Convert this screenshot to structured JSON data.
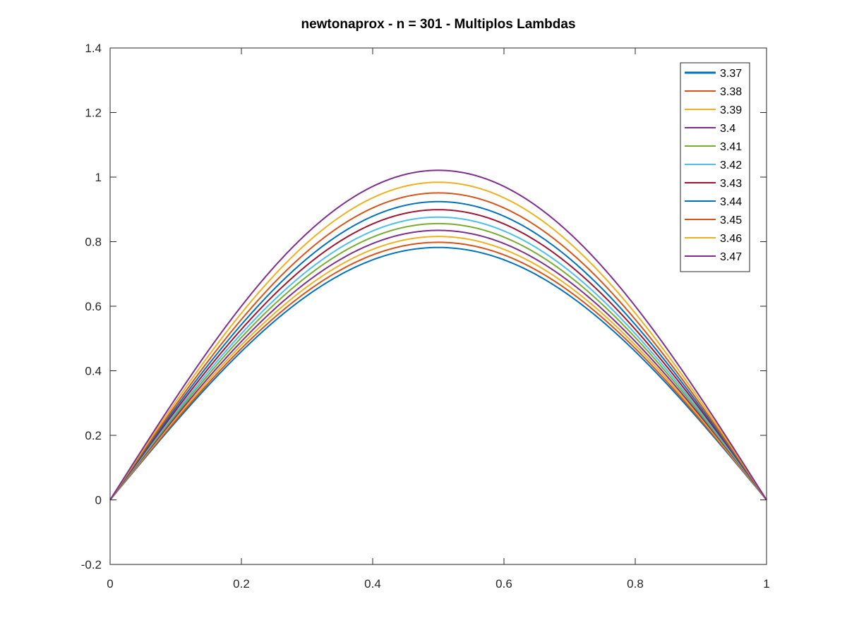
{
  "chart_data": {
    "type": "line",
    "title": "newtonaprox - n = 301 - Multiplos Lambdas",
    "xlabel": "",
    "ylabel": "",
    "xlim": [
      0,
      1
    ],
    "ylim": [
      -0.2,
      1.4
    ],
    "xticks": [
      0,
      0.2,
      0.4,
      0.6,
      0.8,
      1
    ],
    "xtick_labels": [
      "0",
      "0.2",
      "0.4",
      "0.6",
      "0.8",
      "1"
    ],
    "yticks": [
      -0.2,
      0,
      0.2,
      0.4,
      0.6,
      0.8,
      1,
      1.2,
      1.4
    ],
    "ytick_labels": [
      "-0.2",
      "0",
      "0.2",
      "0.4",
      "0.6",
      "0.8",
      "1",
      "1.2",
      "1.4"
    ],
    "grid": false,
    "legend_position": "top-right",
    "curve_shape": "sine-arch, zero at x=0 and x=1, maximum at x=0.5",
    "x_at_peak": 0.5,
    "series": [
      {
        "name": "3.37",
        "color": "#0072BD",
        "peak": 0.782
      },
      {
        "name": "3.38",
        "color": "#D95319",
        "peak": 0.798
      },
      {
        "name": "3.39",
        "color": "#EDB120",
        "peak": 0.816
      },
      {
        "name": "3.4",
        "color": "#7E2F8E",
        "peak": 0.835
      },
      {
        "name": "3.41",
        "color": "#77AC30",
        "peak": 0.856
      },
      {
        "name": "3.42",
        "color": "#4DBEEE",
        "peak": 0.876
      },
      {
        "name": "3.43",
        "color": "#A2142F",
        "peak": 0.899
      },
      {
        "name": "3.44",
        "color": "#0072BD",
        "peak": 0.924
      },
      {
        "name": "3.45",
        "color": "#D95319",
        "peak": 0.951
      },
      {
        "name": "3.46",
        "color": "#EDB120",
        "peak": 0.984
      },
      {
        "name": "3.47",
        "color": "#7E2F8E",
        "peak": 1.021
      }
    ]
  }
}
